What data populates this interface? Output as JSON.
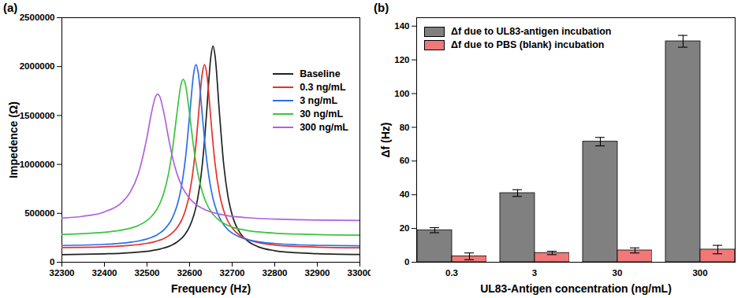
{
  "chart_data": [
    {
      "type": "line",
      "title": "(a)",
      "x_label": "Frequency (Hz)",
      "y_label": "Impedence (Ω)",
      "x": [
        32300,
        32350,
        32400,
        32440,
        32460,
        32480,
        32500,
        32510,
        32520,
        32525,
        32530,
        32540,
        32550,
        32560,
        32570,
        32580,
        32585,
        32590,
        32600,
        32610,
        32615,
        32620,
        32630,
        32635,
        32640,
        32650,
        32655,
        32660,
        32670,
        32680,
        32690,
        32700,
        32720,
        32740,
        32760,
        32800,
        32850,
        32900,
        33000
      ],
      "series": [
        {
          "name": "Baseline",
          "color": "#222222",
          "values": [
            78000,
            81000,
            86000,
            92000,
            97000,
            103000,
            112000,
            118000,
            125000,
            130000,
            134000,
            146000,
            160000,
            179000,
            205000,
            240000,
            262000,
            290000,
            365000,
            483000,
            566000,
            676000,
            1005000,
            1242000,
            1531000,
            2104000,
            2210000,
            2104000,
            1531000,
            1005000,
            676000,
            483000,
            290000,
            205000,
            160000,
            118000,
            97000,
            87000,
            79000
          ]
        },
        {
          "name": "0.3 ng/mL",
          "color": "#e8302a",
          "values": [
            149000,
            152000,
            158000,
            166000,
            172000,
            181000,
            193000,
            202000,
            212000,
            219000,
            226000,
            244000,
            268000,
            302000,
            349000,
            420000,
            468000,
            529000,
            706000,
            1002000,
            1211000,
            1459000,
            1936000,
            2020000,
            1936000,
            1459000,
            1211000,
            1002000,
            706000,
            529000,
            420000,
            349000,
            268000,
            226000,
            202000,
            176000,
            161000,
            154000,
            147000
          ]
        },
        {
          "name": "3 ng/mL",
          "color": "#2a6fe8",
          "values": [
            171000,
            175000,
            183000,
            194000,
            204000,
            217000,
            238000,
            253000,
            271000,
            283000,
            298000,
            333000,
            383000,
            458000,
            572000,
            754000,
            887000,
            1052000,
            1498000,
            1943000,
            2020000,
            1943000,
            1498000,
            1258000,
            1052000,
            754000,
            652000,
            572000,
            458000,
            383000,
            333000,
            298000,
            253000,
            226000,
            210000,
            191000,
            179000,
            173000,
            167000
          ]
        },
        {
          "name": "30 ng/mL",
          "color": "#3cc43c",
          "values": [
            285000,
            292000,
            306000,
            328000,
            347000,
            376000,
            427000,
            466000,
            520000,
            556000,
            599000,
            717000,
            895000,
            1160000,
            1513000,
            1820000,
            1870000,
            1820000,
            1513000,
            1160000,
            1015000,
            895000,
            717000,
            652000,
            599000,
            520000,
            491000,
            466000,
            427000,
            398000,
            376000,
            359000,
            336000,
            321000,
            310000,
            297000,
            288000,
            282000,
            277000
          ]
        },
        {
          "name": "300 ng/mL",
          "color": "#b060e0",
          "values": [
            451000,
            470000,
            515000,
            608000,
            712000,
            910000,
            1281000,
            1518000,
            1694000,
            1720000,
            1694000,
            1518000,
            1281000,
            1070000,
            910000,
            795000,
            750000,
            712000,
            653000,
            608000,
            591000,
            575000,
            550000,
            539000,
            530000,
            515000,
            508000,
            502000,
            491000,
            483000,
            476000,
            470000,
            461000,
            454000,
            448000,
            441000,
            435000,
            431000,
            427000
          ]
        }
      ],
      "xlim": [
        32300,
        33000
      ],
      "xticks": [
        32300,
        32400,
        32500,
        32600,
        32700,
        32800,
        32900,
        33000
      ],
      "ylim": [
        0,
        2500000
      ],
      "yticks": [
        0,
        500000,
        1000000,
        1500000,
        2000000,
        2500000
      ],
      "legend": "upper right"
    },
    {
      "type": "bar",
      "title": "(b)",
      "x_label": "UL83-Antigen concentration (ng/mL)",
      "y_label": "Δf (Hz)",
      "categories": [
        "0.3",
        "3",
        "30",
        "300"
      ],
      "series": [
        {
          "name": "Δf due to UL83-antigen incubation",
          "color": "#808080",
          "values": [
            19,
            41,
            71.5,
            131
          ],
          "errors": [
            1.5,
            2,
            2.5,
            3.5
          ]
        },
        {
          "name": "Δf due to PBS (blank) incubation",
          "color": "#f07878",
          "values": [
            3.5,
            5.5,
            7,
            7.5
          ],
          "errors": [
            2,
            1,
            1.5,
            2.5
          ]
        }
      ],
      "ylim": [
        0,
        145
      ],
      "yticks": [
        0,
        20,
        40,
        60,
        80,
        100,
        120,
        140
      ],
      "legend": "upper left"
    }
  ]
}
